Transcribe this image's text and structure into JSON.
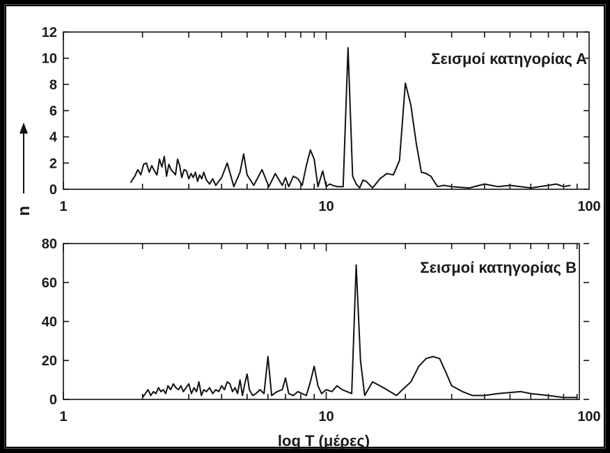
{
  "chart_data": [
    {
      "type": "line",
      "title": "Σεισμοί κατηγορίας Α",
      "xscale": "log",
      "xlim": [
        1,
        100
      ],
      "ylim": [
        0,
        12
      ],
      "xticks": [
        1,
        10,
        100
      ],
      "xtick_labels": [
        "1",
        "10",
        "100"
      ],
      "yticks": [
        0,
        2,
        4,
        6,
        8,
        10,
        12
      ],
      "ytick_labels": [
        "0",
        "2",
        "4",
        "6",
        "8",
        "10",
        "12"
      ],
      "grid": false,
      "series": [
        {
          "x": [
            1.8,
            1.87,
            1.92,
            1.97,
            2.02,
            2.07,
            2.12,
            2.17,
            2.22,
            2.27,
            2.32,
            2.37,
            2.42,
            2.47,
            2.52,
            2.57,
            2.62,
            2.67,
            2.72,
            2.77,
            2.82,
            2.88,
            2.94,
            3.0,
            3.06,
            3.12,
            3.18,
            3.24,
            3.3,
            3.36,
            3.42,
            3.5,
            3.6,
            3.7,
            3.8,
            3.9,
            4.0,
            4.2,
            4.45,
            4.7,
            4.85,
            5.0,
            5.3,
            5.7,
            6.05,
            6.4,
            6.8,
            7.0,
            7.2,
            7.5,
            7.8,
            8.1,
            8.4,
            8.7,
            9.0,
            9.3,
            9.7,
            10.0,
            10.3,
            10.6,
            11.0,
            11.6,
            12.1,
            12.6,
            13.0,
            13.4,
            13.8,
            14.2,
            15.0,
            16.0,
            17.0,
            18.0,
            19.0,
            20.0,
            21.0,
            22.0,
            23.0,
            24.0,
            25.0,
            26.5,
            28.0,
            30.0,
            35.0,
            40.0,
            45.0,
            50.0,
            60.0,
            70.0,
            75.0,
            80.0,
            85.0
          ],
          "y": [
            0.5,
            1.0,
            1.5,
            1.1,
            1.9,
            2.0,
            1.3,
            1.8,
            1.4,
            1.1,
            2.3,
            1.7,
            2.5,
            1.0,
            1.9,
            1.5,
            1.3,
            1.1,
            2.3,
            1.8,
            0.9,
            1.5,
            1.4,
            0.8,
            1.2,
            0.9,
            1.3,
            0.6,
            1.1,
            0.8,
            1.3,
            0.7,
            0.4,
            0.8,
            0.3,
            0.6,
            0.9,
            2.0,
            0.2,
            1.3,
            2.7,
            1.1,
            0.3,
            1.5,
            0.2,
            1.2,
            0.3,
            0.9,
            0.2,
            1.0,
            0.8,
            0.3,
            1.8,
            3.0,
            2.3,
            0.2,
            1.4,
            0.2,
            0.4,
            0.3,
            0.2,
            0.2,
            10.8,
            1.0,
            0.4,
            0.1,
            0.7,
            0.6,
            0.1,
            0.8,
            1.2,
            1.1,
            2.2,
            8.1,
            6.4,
            3.5,
            1.3,
            1.2,
            1.0,
            0.2,
            0.3,
            0.2,
            0.1,
            0.4,
            0.2,
            0.3,
            0.1,
            0.3,
            0.4,
            0.2,
            0.3
          ]
        }
      ]
    },
    {
      "type": "line",
      "title": "Σεισμοί κατηγορίας Β",
      "xlabel": "log T (μέρες)",
      "ylabel": "n",
      "xscale": "log",
      "xlim": [
        1,
        100
      ],
      "ylim": [
        0,
        80
      ],
      "xticks": [
        1,
        10,
        100
      ],
      "xtick_labels": [
        "1",
        "10",
        "100"
      ],
      "yticks": [
        0,
        20,
        40,
        60,
        80
      ],
      "ytick_labels": [
        "0",
        "20",
        "40",
        "60",
        "80"
      ],
      "grid": false,
      "series": [
        {
          "x": [
            2.0,
            2.05,
            2.1,
            2.15,
            2.2,
            2.25,
            2.3,
            2.35,
            2.4,
            2.45,
            2.5,
            2.56,
            2.62,
            2.68,
            2.74,
            2.8,
            2.86,
            2.93,
            3.0,
            3.07,
            3.14,
            3.21,
            3.28,
            3.35,
            3.42,
            3.5,
            3.6,
            3.7,
            3.8,
            3.9,
            4.0,
            4.1,
            4.2,
            4.3,
            4.4,
            4.5,
            4.6,
            4.7,
            4.8,
            4.9,
            5.0,
            5.1,
            5.25,
            5.4,
            5.6,
            5.8,
            6.0,
            6.2,
            6.5,
            6.8,
            7.0,
            7.2,
            7.5,
            7.8,
            8.1,
            8.4,
            8.7,
            9.0,
            9.3,
            9.6,
            10.0,
            10.5,
            11.0,
            11.5,
            12.0,
            12.5,
            13.0,
            13.5,
            14.0,
            15.0,
            16.0,
            17.0,
            18.5,
            19.5,
            21.0,
            22.5,
            24.0,
            25.5,
            27.0,
            28.5,
            30.0,
            33.0,
            36.0,
            40.0,
            45.0,
            55.0,
            60.0,
            70.0,
            80.0,
            90.0
          ],
          "y": [
            1,
            3,
            5,
            2,
            4,
            3,
            6,
            4,
            5,
            3,
            7,
            5,
            8,
            6,
            5,
            7,
            4,
            6,
            8,
            3,
            6,
            4,
            9,
            2,
            5,
            4,
            6,
            3,
            5,
            4,
            7,
            5,
            9,
            8,
            4,
            6,
            3,
            10,
            2,
            8,
            13,
            5,
            2,
            3,
            5,
            3,
            22,
            2,
            4,
            5,
            11,
            3,
            2,
            4,
            3,
            2,
            9,
            17,
            7,
            3,
            5,
            4,
            7,
            5,
            4,
            3,
            69,
            20,
            2,
            9,
            7,
            5,
            2,
            5,
            9,
            17,
            21,
            22,
            21,
            14,
            7,
            4,
            2,
            2,
            3,
            4,
            3,
            2,
            1,
            1
          ]
        }
      ]
    }
  ]
}
